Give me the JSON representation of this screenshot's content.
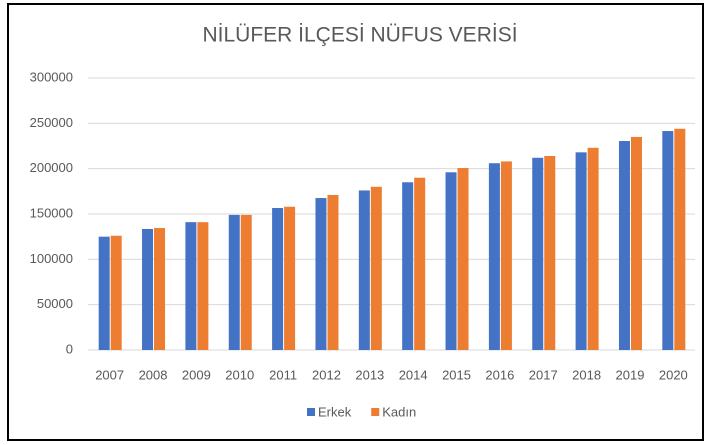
{
  "chart_data": {
    "type": "bar",
    "title": "NİLÜFER İLÇESİ NÜFUS VERİSİ",
    "categories": [
      "2007",
      "2008",
      "2009",
      "2010",
      "2011",
      "2012",
      "2013",
      "2014",
      "2015",
      "2016",
      "2017",
      "2018",
      "2019",
      "2020"
    ],
    "series": [
      {
        "name": "Erkek",
        "color": "#4472c4",
        "values": [
          125000,
          133500,
          141000,
          149000,
          156600,
          167600,
          176000,
          185000,
          196000,
          206000,
          212000,
          218000,
          230500,
          241500
        ]
      },
      {
        "name": "Kadın",
        "color": "#ed7d31",
        "values": [
          126000,
          134500,
          141000,
          149000,
          158000,
          171000,
          180000,
          190000,
          200700,
          208000,
          214000,
          223000,
          235000,
          244000
        ]
      }
    ],
    "ylim": [
      0,
      300000
    ],
    "yticks": [
      0,
      50000,
      100000,
      150000,
      200000,
      250000,
      300000
    ],
    "grid": true,
    "legend": "bottom"
  }
}
